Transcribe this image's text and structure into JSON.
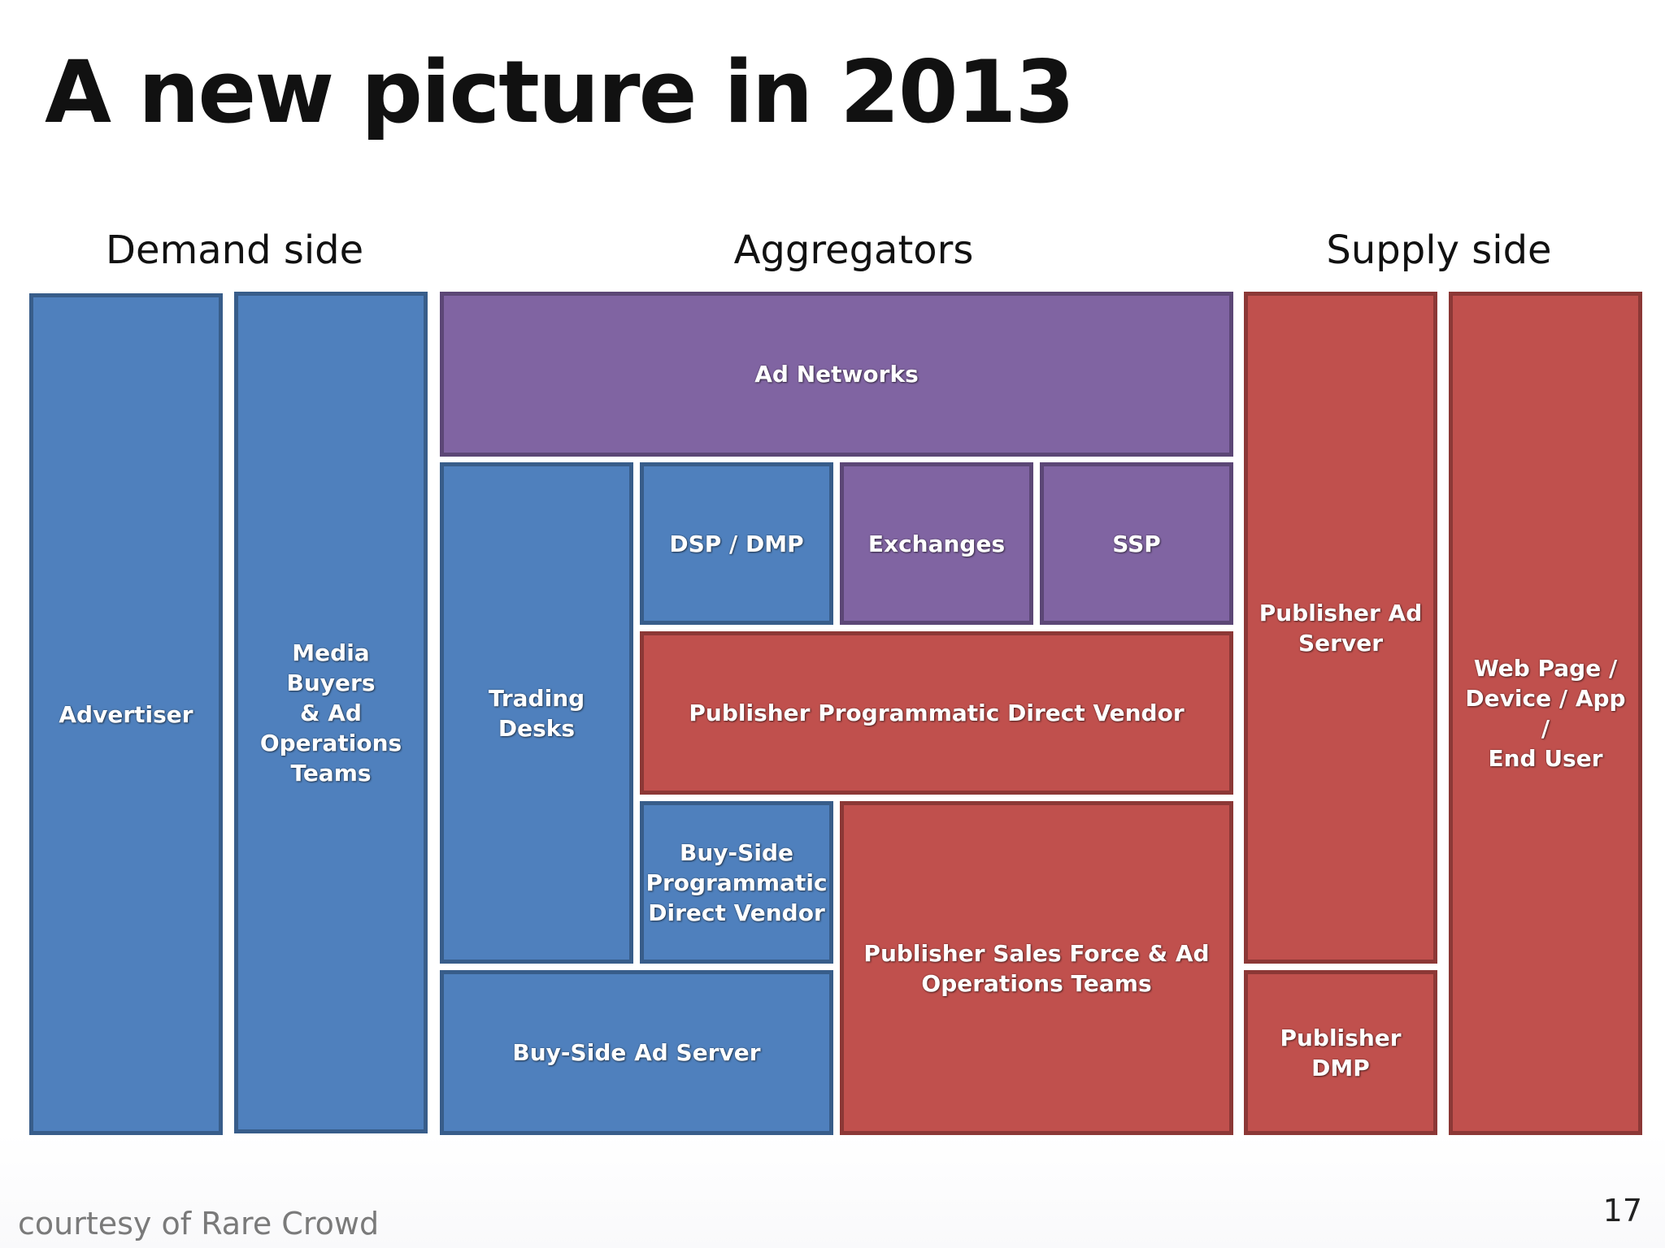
{
  "title": "A new picture in 2013",
  "sections": {
    "demand": "Demand side",
    "aggregators": "Aggregators",
    "supply": "Supply side"
  },
  "boxes": {
    "advertiser": "Advertiser",
    "media_buyers": "Media Buyers\n& Ad\nOperations\nTeams",
    "ad_networks": "Ad Networks",
    "trading_desks": "Trading Desks",
    "dsp_dmp": "DSP / DMP",
    "exchanges": "Exchanges",
    "ssp": "SSP",
    "publisher_programmatic": "Publisher Programmatic Direct Vendor",
    "buyside_programmatic": "Buy-Side\nProgrammatic\nDirect Vendor",
    "publisher_sales_force": "Publisher Sales Force & Ad\nOperations Teams",
    "buyside_ad_server": "Buy-Side Ad Server",
    "publisher_ad_server": "Publisher Ad\nServer",
    "publisher_dmp": "Publisher\nDMP",
    "web_page": "Web Page /\nDevice / App /\nEnd User"
  },
  "colors": {
    "demand_blue": "#4f80bd",
    "aggregator_purple": "#8064a2",
    "supply_red": "#c0504d"
  },
  "footer": {
    "credit": "courtesy of Rare Crowd",
    "page_number": "17"
  }
}
